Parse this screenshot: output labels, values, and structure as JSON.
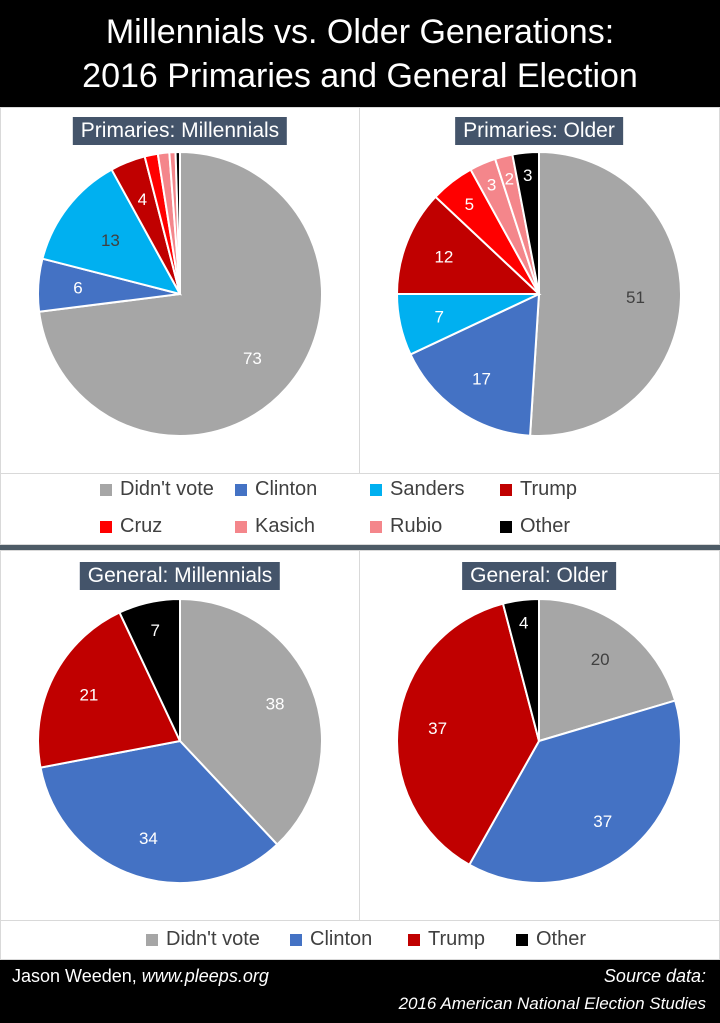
{
  "header": {
    "line1": "Millennials vs. Older Generations:",
    "line2": "2016 Primaries and General Election"
  },
  "colors": {
    "didnt_vote": "#a6a6a6",
    "clinton": "#4472c4",
    "sanders": "#00b0f0",
    "trump": "#c00000",
    "cruz": "#ff0000",
    "kasich": "#f4868b",
    "rubio": "#f4868b",
    "other": "#000000"
  },
  "legends": {
    "primaries": [
      {
        "label": "Didn't vote",
        "color": "#a6a6a6"
      },
      {
        "label": "Clinton",
        "color": "#4472c4"
      },
      {
        "label": "Sanders",
        "color": "#00b0f0"
      },
      {
        "label": "Trump",
        "color": "#c00000"
      },
      {
        "label": "Cruz",
        "color": "#ff0000"
      },
      {
        "label": "Kasich",
        "color": "#f4868b"
      },
      {
        "label": "Rubio",
        "color": "#f4868b"
      },
      {
        "label": "Other",
        "color": "#000000"
      }
    ],
    "general": [
      {
        "label": "Didn't vote",
        "color": "#a6a6a6"
      },
      {
        "label": "Clinton",
        "color": "#4472c4"
      },
      {
        "label": "Trump",
        "color": "#c00000"
      },
      {
        "label": "Other",
        "color": "#000000"
      }
    ]
  },
  "chart_data": [
    {
      "type": "pie",
      "title": "Primaries: Millennials",
      "categories": [
        "Didn't vote",
        "Clinton",
        "Sanders",
        "Trump",
        "Cruz",
        "Kasich",
        "Rubio",
        "Other"
      ],
      "values": [
        73,
        6,
        13,
        4,
        1.5,
        1.3,
        0.7,
        0.5
      ],
      "labels": [
        "73",
        "6",
        "13",
        "4",
        "",
        "",
        "",
        ""
      ],
      "colors": [
        "#a6a6a6",
        "#4472c4",
        "#00b0f0",
        "#c00000",
        "#ff0000",
        "#f4868b",
        "#f4868b",
        "#000000"
      ],
      "label_colors": [
        "#ffffff",
        "#ffffff",
        "#404040",
        "#ffffff",
        "",
        "",
        "",
        ""
      ]
    },
    {
      "type": "pie",
      "title": "Primaries: Older",
      "categories": [
        "Didn't vote",
        "Clinton",
        "Sanders",
        "Trump",
        "Cruz",
        "Kasich",
        "Rubio",
        "Other"
      ],
      "values": [
        51,
        17,
        7,
        12,
        5,
        3,
        2,
        3
      ],
      "labels": [
        "51",
        "17",
        "7",
        "12",
        "5",
        "3",
        "2",
        "3"
      ],
      "colors": [
        "#a6a6a6",
        "#4472c4",
        "#00b0f0",
        "#c00000",
        "#ff0000",
        "#f4868b",
        "#f4868b",
        "#000000"
      ],
      "label_colors": [
        "#404040",
        "#ffffff",
        "#ffffff",
        "#ffffff",
        "#ffffff",
        "#ffffff",
        "#ffffff",
        "#ffffff"
      ]
    },
    {
      "type": "pie",
      "title": "General: Millennials",
      "categories": [
        "Didn't vote",
        "Clinton",
        "Trump",
        "Other"
      ],
      "values": [
        38,
        34,
        21,
        7
      ],
      "labels": [
        "38",
        "34",
        "21",
        "7"
      ],
      "colors": [
        "#a6a6a6",
        "#4472c4",
        "#c00000",
        "#000000"
      ],
      "label_colors": [
        "#ffffff",
        "#ffffff",
        "#ffffff",
        "#ffffff"
      ]
    },
    {
      "type": "pie",
      "title": "General: Older",
      "categories": [
        "Didn't vote",
        "Clinton",
        "Trump",
        "Other"
      ],
      "values": [
        20,
        37,
        37,
        4
      ],
      "labels": [
        "20",
        "37",
        "37",
        "4"
      ],
      "colors": [
        "#a6a6a6",
        "#4472c4",
        "#c00000",
        "#000000"
      ],
      "label_colors": [
        "#404040",
        "#ffffff",
        "#ffffff",
        "#ffffff"
      ]
    }
  ],
  "footer": {
    "author": "Jason Weeden, ",
    "url": "www.pleeps.org",
    "source_label": "Source data:",
    "source_name": "2016 American National Election Studies"
  }
}
